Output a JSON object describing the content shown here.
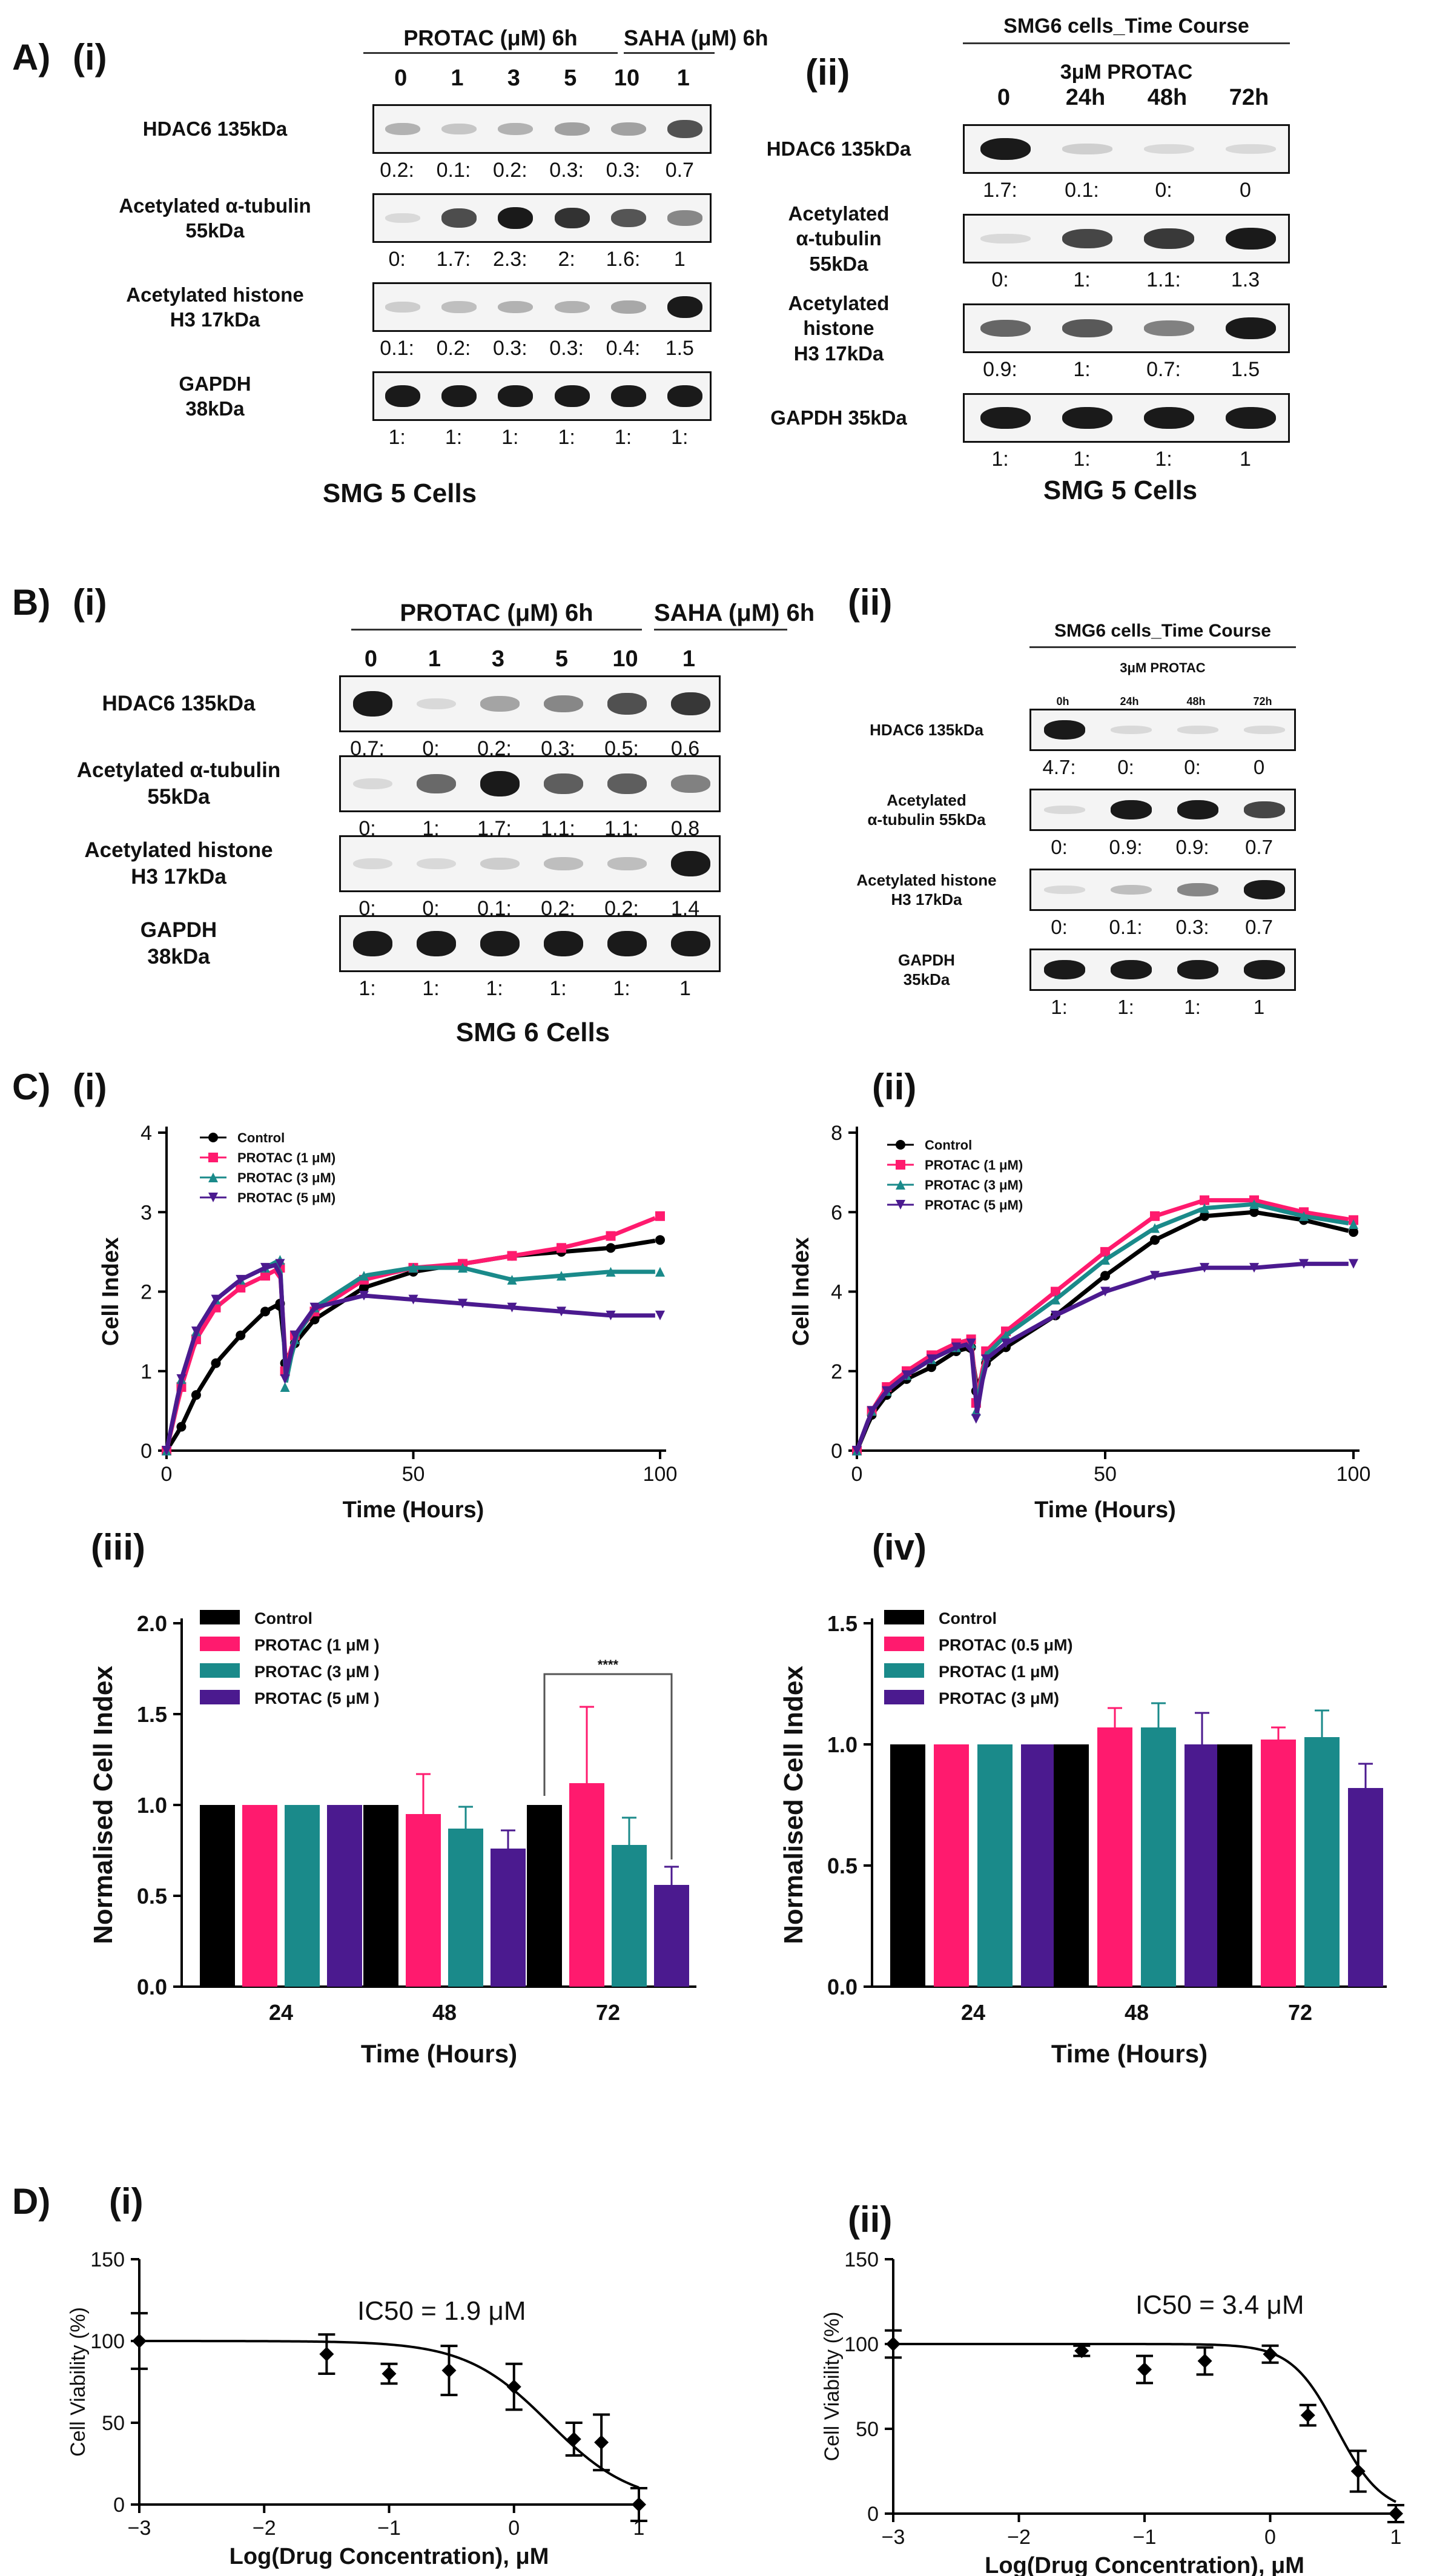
{
  "panelA": {
    "letter": "A)",
    "i": {
      "roman": "(i)",
      "header_protac": "PROTAC (μM) 6h",
      "header_saha": "SAHA (μM) 6h",
      "lanes": [
        "0",
        "1",
        "3",
        "5",
        "10",
        "1"
      ],
      "blots": [
        {
          "label": "HDAC6 135kDa",
          "quant": [
            "0.2:",
            "0.1:",
            "0.2:",
            "0.3:",
            "0.3:",
            "0.7"
          ]
        },
        {
          "label": "Acetylated α-tubulin\n55kDa",
          "quant": [
            "0:",
            "1.7:",
            "2.3:",
            "2:",
            "1.6:",
            "1"
          ]
        },
        {
          "label": "Acetylated histone\nH3 17kDa",
          "quant": [
            "0.1:",
            "0.2:",
            "0.3:",
            "0.3:",
            "0.4:",
            "1.5"
          ]
        },
        {
          "label": "GAPDH\n38kDa",
          "quant": [
            "1:",
            "1:",
            "1:",
            "1:",
            "1:",
            "1:"
          ]
        }
      ],
      "caption": "SMG 5 Cells"
    },
    "ii": {
      "roman": "(ii)",
      "header": "SMG6 cells_Time Course",
      "subheader": "3μM PROTAC",
      "lanes": [
        "0",
        "24h",
        "48h",
        "72h"
      ],
      "blots": [
        {
          "label": "HDAC6 135kDa",
          "quant": [
            "1.7:",
            "0.1:",
            "0:",
            "0"
          ]
        },
        {
          "label": "Acetylated\nα-tubulin\n55kDa",
          "quant": [
            "0:",
            "1:",
            "1.1:",
            "1.3"
          ]
        },
        {
          "label": "Acetylated\nhistone\nH3 17kDa",
          "quant": [
            "0.9:",
            "1:",
            "0.7:",
            "1.5"
          ]
        },
        {
          "label": "GAPDH 35kDa",
          "quant": [
            "1:",
            "1:",
            "1:",
            "1"
          ]
        }
      ],
      "caption": "SMG 5 Cells"
    }
  },
  "panelB": {
    "letter": "B)",
    "i": {
      "roman": "(i)",
      "header_protac": "PROTAC (μM) 6h",
      "header_saha": "SAHA (μM) 6h",
      "lanes": [
        "0",
        "1",
        "3",
        "5",
        "10",
        "1"
      ],
      "blots": [
        {
          "label": "HDAC6 135kDa",
          "quant": [
            "0.7:",
            "0:",
            "0.2:",
            "0.3:",
            "0.5:",
            "0.6"
          ]
        },
        {
          "label": "Acetylated  α-tubulin\n55kDa",
          "quant": [
            "0:",
            "1:",
            "1.7:",
            "1.1:",
            "1.1:",
            "0.8"
          ]
        },
        {
          "label": "Acetylated  histone\nH3 17kDa",
          "quant": [
            "0:",
            "0:",
            "0.1:",
            "0.2:",
            "0.2:",
            "1.4"
          ]
        },
        {
          "label": "GAPDH\n38kDa",
          "quant": [
            "1:",
            "1:",
            "1:",
            "1:",
            "1:",
            "1"
          ]
        }
      ],
      "caption": "SMG 6 Cells"
    },
    "ii": {
      "roman": "(ii)",
      "header": "SMG6 cells_Time  Course",
      "subheader": "3μM PROTAC",
      "lanes": [
        "0h",
        "24h",
        "48h",
        "72h"
      ],
      "blots": [
        {
          "label": "HDAC6 135kDa",
          "quant": [
            "4.7:",
            "0:",
            "0:",
            "0"
          ]
        },
        {
          "label": "Acetylated\nα-tubulin 55kDa",
          "quant": [
            "0:",
            "0.9:",
            "0.9:",
            "0.7"
          ]
        },
        {
          "label": "Acetylated histone\nH3 17kDa",
          "quant": [
            "0:",
            "0.1:",
            "0.3:",
            "0.7"
          ]
        },
        {
          "label": "GAPDH\n35kDa",
          "quant": [
            "1:",
            "1:",
            "1:",
            "1"
          ]
        }
      ]
    }
  },
  "panelC": {
    "letter": "C)",
    "roman_i": "(i)",
    "roman_ii": "(ii)",
    "roman_iii": "(iii)",
    "roman_iv": "(iv)"
  },
  "panelD": {
    "letter": "D)",
    "roman_i": "(i)",
    "roman_ii": "(ii)"
  },
  "colors": {
    "control": "#000000",
    "protac1": "#ff1a6e",
    "protac3": "#1a8a8a",
    "protac5": "#4b1a8f"
  },
  "chart_data": [
    {
      "id": "Ci",
      "type": "line",
      "xlabel": "Time (Hours)",
      "ylabel": "Cell Index",
      "xlim": [
        0,
        100
      ],
      "ylim": [
        0,
        4
      ],
      "xticks": [
        "0",
        "50",
        "100"
      ],
      "yticks": [
        "0",
        "1",
        "2",
        "3",
        "4"
      ],
      "legend": [
        "Control",
        "PROTAC (1 μM)",
        "PROTAC (3 μM)",
        "PROTAC (5 μM)"
      ],
      "series": [
        {
          "name": "Control",
          "x": [
            0,
            3,
            6,
            10,
            15,
            20,
            23,
            24,
            26,
            30,
            40,
            50,
            60,
            70,
            80,
            90,
            100
          ],
          "y": [
            0,
            0.3,
            0.7,
            1.1,
            1.45,
            1.75,
            1.85,
            1.1,
            1.35,
            1.65,
            2.05,
            2.25,
            2.35,
            2.45,
            2.5,
            2.55,
            2.65
          ]
        },
        {
          "name": "PROTAC (1 μM)",
          "x": [
            0,
            3,
            6,
            10,
            15,
            20,
            23,
            24,
            26,
            30,
            40,
            50,
            60,
            70,
            80,
            90,
            100
          ],
          "y": [
            0,
            0.8,
            1.4,
            1.8,
            2.05,
            2.2,
            2.3,
            1.0,
            1.45,
            1.75,
            2.15,
            2.3,
            2.35,
            2.45,
            2.55,
            2.7,
            2.95
          ]
        },
        {
          "name": "PROTAC (3 μM)",
          "x": [
            0,
            3,
            6,
            10,
            15,
            20,
            23,
            24,
            26,
            30,
            40,
            50,
            60,
            70,
            80,
            90,
            100
          ],
          "y": [
            0,
            0.9,
            1.5,
            1.9,
            2.15,
            2.3,
            2.4,
            0.8,
            1.4,
            1.8,
            2.2,
            2.3,
            2.3,
            2.15,
            2.2,
            2.25,
            2.25
          ]
        },
        {
          "name": "PROTAC (5 μM)",
          "x": [
            0,
            3,
            6,
            10,
            15,
            20,
            23,
            24,
            26,
            30,
            40,
            50,
            60,
            70,
            80,
            90,
            100
          ],
          "y": [
            0,
            0.9,
            1.5,
            1.9,
            2.15,
            2.3,
            2.35,
            0.9,
            1.45,
            1.8,
            1.95,
            1.9,
            1.85,
            1.8,
            1.75,
            1.7,
            1.7
          ]
        }
      ]
    },
    {
      "id": "Cii",
      "type": "line",
      "xlabel": "Time (Hours)",
      "ylabel": "Cell Index",
      "xlim": [
        0,
        100
      ],
      "ylim": [
        0,
        8
      ],
      "xticks": [
        "0",
        "50",
        "100"
      ],
      "yticks": [
        "0",
        "2",
        "4",
        "6",
        "8"
      ],
      "legend": [
        "Control",
        "PROTAC (1 μM)",
        "PROTAC (3 μM)",
        "PROTAC (5 μM)"
      ],
      "series": [
        {
          "name": "Control",
          "x": [
            0,
            3,
            6,
            10,
            15,
            20,
            23,
            24,
            26,
            30,
            40,
            50,
            60,
            70,
            80,
            90,
            100
          ],
          "y": [
            0,
            0.9,
            1.4,
            1.8,
            2.1,
            2.5,
            2.6,
            1.5,
            2.2,
            2.6,
            3.4,
            4.4,
            5.3,
            5.9,
            6.0,
            5.8,
            5.5
          ]
        },
        {
          "name": "PROTAC (1 μM)",
          "x": [
            0,
            3,
            6,
            10,
            15,
            20,
            23,
            24,
            26,
            30,
            40,
            50,
            60,
            70,
            80,
            90,
            100
          ],
          "y": [
            0,
            1.0,
            1.6,
            2.0,
            2.4,
            2.7,
            2.8,
            1.2,
            2.5,
            3.0,
            4.0,
            5.0,
            5.9,
            6.3,
            6.3,
            6.0,
            5.8
          ]
        },
        {
          "name": "PROTAC (3 μM)",
          "x": [
            0,
            3,
            6,
            10,
            15,
            20,
            23,
            24,
            26,
            30,
            40,
            50,
            60,
            70,
            80,
            90,
            100
          ],
          "y": [
            0,
            1.0,
            1.5,
            1.9,
            2.3,
            2.6,
            2.7,
            1.0,
            2.4,
            2.9,
            3.8,
            4.8,
            5.6,
            6.1,
            6.2,
            5.9,
            5.7
          ]
        },
        {
          "name": "PROTAC (5 μM)",
          "x": [
            0,
            3,
            6,
            10,
            15,
            20,
            23,
            24,
            26,
            30,
            40,
            50,
            60,
            70,
            80,
            90,
            100
          ],
          "y": [
            0,
            1.0,
            1.5,
            1.9,
            2.3,
            2.6,
            2.7,
            0.8,
            2.3,
            2.7,
            3.4,
            4.0,
            4.4,
            4.6,
            4.6,
            4.7,
            4.7
          ]
        }
      ]
    },
    {
      "id": "Ciii",
      "type": "bar",
      "xlabel": "Time (Hours)",
      "ylabel": "Normalised Cell Index",
      "ylim": [
        0,
        2.0
      ],
      "yticks": [
        "0.0",
        "0.5",
        "1.0",
        "1.5",
        "2.0"
      ],
      "categories": [
        "24",
        "48",
        "72"
      ],
      "annotation": "****",
      "series": [
        {
          "name": "Control",
          "values": [
            1.0,
            1.0,
            1.0
          ],
          "errors": [
            0,
            0,
            0
          ]
        },
        {
          "name": "PROTAC (1 μM )",
          "values": [
            1.0,
            0.95,
            1.12
          ],
          "errors": [
            0,
            0.22,
            0.42
          ]
        },
        {
          "name": "PROTAC (3 μM )",
          "values": [
            1.0,
            0.87,
            0.78
          ],
          "errors": [
            0,
            0.12,
            0.15
          ]
        },
        {
          "name": "PROTAC (5 μM )",
          "values": [
            1.0,
            0.76,
            0.56
          ],
          "errors": [
            0,
            0.1,
            0.1
          ]
        }
      ]
    },
    {
      "id": "Civ",
      "type": "bar",
      "xlabel": "Time (Hours)",
      "ylabel": "Normalised Cell Index",
      "ylim": [
        0,
        1.5
      ],
      "yticks": [
        "0.0",
        "0.5",
        "1.0",
        "1.5"
      ],
      "categories": [
        "24",
        "48",
        "72"
      ],
      "series": [
        {
          "name": "Control",
          "values": [
            1.0,
            1.0,
            1.0
          ],
          "errors": [
            0,
            0,
            0
          ]
        },
        {
          "name": "PROTAC (0.5 μM)",
          "values": [
            1.0,
            1.07,
            1.02
          ],
          "errors": [
            0,
            0.08,
            0.05
          ]
        },
        {
          "name": "PROTAC (1 μM)",
          "values": [
            1.0,
            1.07,
            1.03
          ],
          "errors": [
            0,
            0.1,
            0.11
          ]
        },
        {
          "name": "PROTAC (3 μM)",
          "values": [
            1.0,
            1.0,
            0.82
          ],
          "errors": [
            0,
            0.13,
            0.1
          ]
        }
      ]
    },
    {
      "id": "Di",
      "type": "scatter",
      "xlabel": "Log(Drug Concentration), μM",
      "ylabel": "Cell Viability (%)",
      "xlim": [
        -3,
        1
      ],
      "ylim": [
        0,
        150
      ],
      "xticks": [
        "−3",
        "−2",
        "−1",
        "0",
        "1"
      ],
      "yticks": [
        "0",
        "50",
        "100",
        "150"
      ],
      "annotation": "IC50 = 1.9 μM",
      "ic50_log": 0.28,
      "points": {
        "x": [
          -3,
          -1.5,
          -1,
          -0.52,
          0,
          0.48,
          0.7,
          1
        ],
        "y": [
          100,
          92,
          80,
          82,
          72,
          40,
          38,
          0
        ],
        "err": [
          17,
          12,
          6,
          15,
          14,
          10,
          17,
          10
        ]
      }
    },
    {
      "id": "Dii",
      "type": "scatter",
      "xlabel": "Log(Drug Concentration), μM",
      "ylabel": "Cell Viability (%)",
      "xlim": [
        -3,
        1
      ],
      "ylim": [
        0,
        150
      ],
      "xticks": [
        "−3",
        "−2",
        "−1",
        "0",
        "1"
      ],
      "yticks": [
        "0",
        "50",
        "100",
        "150"
      ],
      "annotation": "IC50 = 3.4 μM",
      "ic50_log": 0.53,
      "points": {
        "x": [
          -3,
          -1.5,
          -1,
          -0.52,
          0,
          0.3,
          0.7,
          1
        ],
        "y": [
          100,
          96,
          85,
          90,
          94,
          58,
          25,
          0
        ],
        "err": [
          8,
          3,
          8,
          8,
          5,
          6,
          12,
          5
        ]
      }
    }
  ]
}
